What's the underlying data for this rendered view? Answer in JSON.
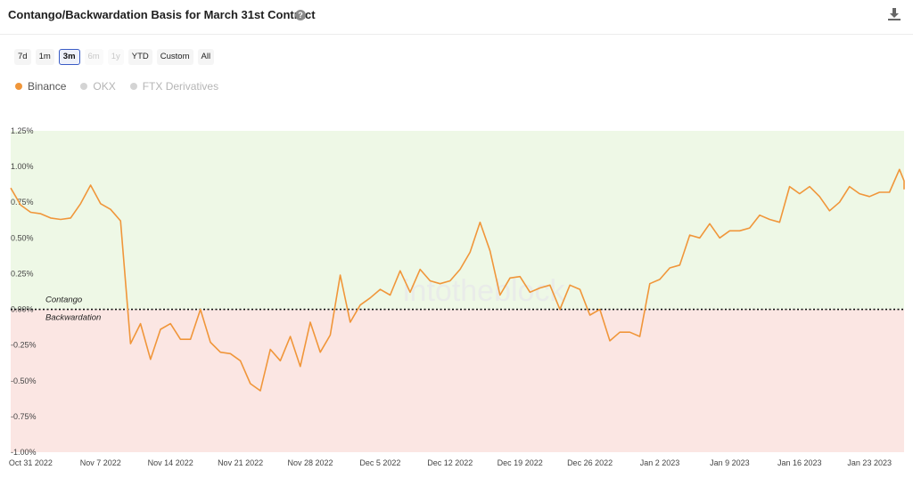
{
  "header": {
    "title": "Contango/Backwardation Basis for March 31st Contract",
    "help_symbol": "?",
    "download_icon": "download-icon"
  },
  "time_ranges": [
    {
      "label": "7d",
      "state": "normal"
    },
    {
      "label": "1m",
      "state": "normal"
    },
    {
      "label": "3m",
      "state": "selected"
    },
    {
      "label": "6m",
      "state": "disabled"
    },
    {
      "label": "1y",
      "state": "disabled"
    },
    {
      "label": "YTD",
      "state": "normal"
    },
    {
      "label": "Custom",
      "state": "normal"
    },
    {
      "label": "All",
      "state": "normal"
    }
  ],
  "legend": [
    {
      "label": "Binance",
      "color": "#f0963a",
      "active": true
    },
    {
      "label": "OKX",
      "color": "#cccccc",
      "active": false
    },
    {
      "label": "FTX Derivatives",
      "color": "#cccccc",
      "active": false
    }
  ],
  "watermark": "intotheblock",
  "colors": {
    "line": "#f0963a",
    "contango_zone": "#eef8e6",
    "backwardation_zone": "#fbe6e3"
  },
  "chart_data": {
    "type": "line",
    "title": "Contango/Backwardation Basis for March 31st Contract",
    "ylim": [
      -1.0,
      1.25
    ],
    "y_ticks": [
      {
        "value": 1.25,
        "label": "1.25%"
      },
      {
        "value": 1.0,
        "label": "1.00%"
      },
      {
        "value": 0.75,
        "label": "0.75%"
      },
      {
        "value": 0.5,
        "label": "0.50%"
      },
      {
        "value": 0.25,
        "label": "0.25%"
      },
      {
        "value": 0.0,
        "label": "0.00%"
      },
      {
        "value": -0.25,
        "label": "-0.25%"
      },
      {
        "value": -0.5,
        "label": "-0.50%"
      },
      {
        "value": -0.75,
        "label": "-0.75%"
      },
      {
        "value": -1.0,
        "label": "-1.00%"
      }
    ],
    "x_ticks": [
      {
        "date": "2022-10-31",
        "label": "Oct 31 2022"
      },
      {
        "date": "2022-11-07",
        "label": "Nov 7 2022"
      },
      {
        "date": "2022-11-14",
        "label": "Nov 14 2022"
      },
      {
        "date": "2022-11-21",
        "label": "Nov 21 2022"
      },
      {
        "date": "2022-11-28",
        "label": "Nov 28 2022"
      },
      {
        "date": "2022-12-05",
        "label": "Dec 5 2022"
      },
      {
        "date": "2022-12-12",
        "label": "Dec 12 2022"
      },
      {
        "date": "2022-12-19",
        "label": "Dec 19 2022"
      },
      {
        "date": "2022-12-26",
        "label": "Dec 26 2022"
      },
      {
        "date": "2023-01-02",
        "label": "Jan 2 2023"
      },
      {
        "date": "2023-01-09",
        "label": "Jan 9 2023"
      },
      {
        "date": "2023-01-16",
        "label": "Jan 16 2023"
      },
      {
        "date": "2023-01-23",
        "label": "Jan 23 2023"
      }
    ],
    "x_range": [
      "2022-10-29",
      "2023-01-26"
    ],
    "zones": [
      {
        "label": "Contango",
        "from": 0,
        "to": 1.25
      },
      {
        "label": "Backwardation",
        "from": -1.0,
        "to": 0
      }
    ],
    "series": [
      {
        "name": "Binance",
        "points": [
          [
            "2022-10-29",
            0.85
          ],
          [
            "2022-10-30",
            0.73
          ],
          [
            "2022-10-31",
            0.68
          ],
          [
            "2022-11-01",
            0.67
          ],
          [
            "2022-11-02",
            0.64
          ],
          [
            "2022-11-03",
            0.63
          ],
          [
            "2022-11-04",
            0.64
          ],
          [
            "2022-11-05",
            0.74
          ],
          [
            "2022-11-06",
            0.87
          ],
          [
            "2022-11-07",
            0.74
          ],
          [
            "2022-11-08",
            0.7
          ],
          [
            "2022-11-09",
            0.62
          ],
          [
            "2022-11-10",
            -0.24
          ],
          [
            "2022-11-11",
            -0.1
          ],
          [
            "2022-11-12",
            -0.35
          ],
          [
            "2022-11-13",
            -0.14
          ],
          [
            "2022-11-14",
            -0.1
          ],
          [
            "2022-11-15",
            -0.21
          ],
          [
            "2022-11-16",
            -0.21
          ],
          [
            "2022-11-17",
            0.0
          ],
          [
            "2022-11-18",
            -0.23
          ],
          [
            "2022-11-19",
            -0.3
          ],
          [
            "2022-11-20",
            -0.31
          ],
          [
            "2022-11-21",
            -0.36
          ],
          [
            "2022-11-22",
            -0.52
          ],
          [
            "2022-11-23",
            -0.57
          ],
          [
            "2022-11-24",
            -0.28
          ],
          [
            "2022-11-25",
            -0.36
          ],
          [
            "2022-11-26",
            -0.19
          ],
          [
            "2022-11-27",
            -0.4
          ],
          [
            "2022-11-28",
            -0.09
          ],
          [
            "2022-11-29",
            -0.3
          ],
          [
            "2022-11-30",
            -0.18
          ],
          [
            "2022-12-01",
            0.24
          ],
          [
            "2022-12-02",
            -0.09
          ],
          [
            "2022-12-03",
            0.03
          ],
          [
            "2022-12-04",
            0.08
          ],
          [
            "2022-12-05",
            0.14
          ],
          [
            "2022-12-06",
            0.1
          ],
          [
            "2022-12-07",
            0.27
          ],
          [
            "2022-12-08",
            0.12
          ],
          [
            "2022-12-09",
            0.28
          ],
          [
            "2022-12-10",
            0.2
          ],
          [
            "2022-12-11",
            0.18
          ],
          [
            "2022-12-12",
            0.2
          ],
          [
            "2022-12-13",
            0.28
          ],
          [
            "2022-12-14",
            0.4
          ],
          [
            "2022-12-15",
            0.61
          ],
          [
            "2022-12-16",
            0.41
          ],
          [
            "2022-12-17",
            0.1
          ],
          [
            "2022-12-18",
            0.22
          ],
          [
            "2022-12-19",
            0.23
          ],
          [
            "2022-12-20",
            0.12
          ],
          [
            "2022-12-21",
            0.15
          ],
          [
            "2022-12-22",
            0.17
          ],
          [
            "2022-12-23",
            0.0
          ],
          [
            "2022-12-24",
            0.17
          ],
          [
            "2022-12-25",
            0.14
          ],
          [
            "2022-12-26",
            -0.04
          ],
          [
            "2022-12-27",
            0.0
          ],
          [
            "2022-12-28",
            -0.22
          ],
          [
            "2022-12-29",
            -0.16
          ],
          [
            "2022-12-30",
            -0.16
          ],
          [
            "2022-12-31",
            -0.19
          ],
          [
            "2023-01-01",
            0.18
          ],
          [
            "2023-01-02",
            0.21
          ],
          [
            "2023-01-03",
            0.29
          ],
          [
            "2023-01-04",
            0.31
          ],
          [
            "2023-01-05",
            0.52
          ],
          [
            "2023-01-06",
            0.5
          ],
          [
            "2023-01-07",
            0.6
          ],
          [
            "2023-01-08",
            0.5
          ],
          [
            "2023-01-09",
            0.55
          ],
          [
            "2023-01-10",
            0.55
          ],
          [
            "2023-01-11",
            0.57
          ],
          [
            "2023-01-12",
            0.66
          ],
          [
            "2023-01-13",
            0.63
          ],
          [
            "2023-01-14",
            0.61
          ],
          [
            "2023-01-15",
            0.86
          ],
          [
            "2023-01-16",
            0.81
          ],
          [
            "2023-01-17",
            0.86
          ],
          [
            "2023-01-18",
            0.79
          ],
          [
            "2023-01-19",
            0.69
          ],
          [
            "2023-01-20",
            0.75
          ],
          [
            "2023-01-21",
            0.86
          ],
          [
            "2023-01-22",
            0.81
          ],
          [
            "2023-01-23",
            0.79
          ],
          [
            "2023-01-24",
            0.82
          ],
          [
            "2023-01-25",
            0.82
          ],
          [
            "2023-01-26",
            0.98
          ],
          [
            "2023-01-27",
            0.9
          ],
          [
            "2023-01-28",
            0.84
          ]
        ]
      }
    ]
  }
}
